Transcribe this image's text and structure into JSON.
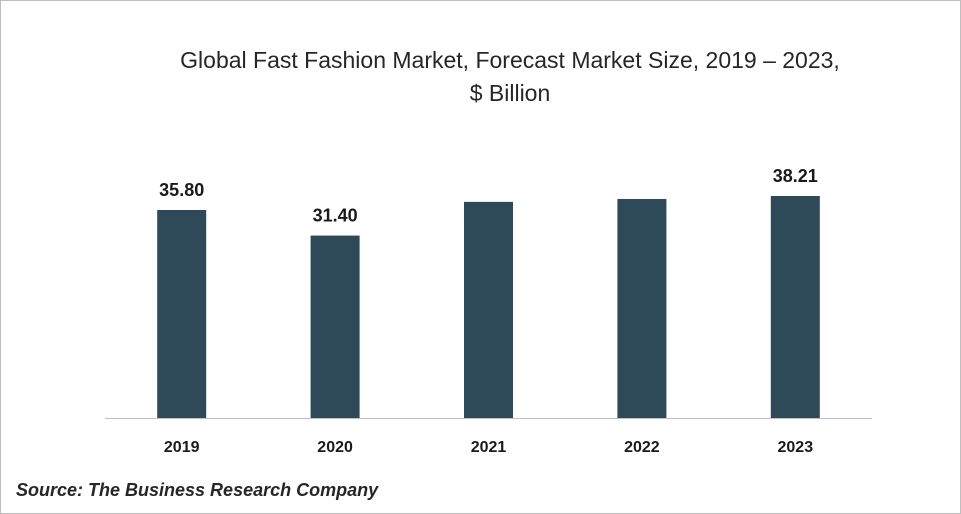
{
  "chart_data": {
    "type": "bar",
    "title": "Global Fast Fashion Market, Forecast Market Size, 2019 – 2023,",
    "subtitle": "$ Billion",
    "categories": [
      "2019",
      "2020",
      "2021",
      "2022",
      "2023"
    ],
    "values": [
      35.8,
      31.4,
      37.2,
      37.7,
      38.21
    ],
    "data_labels": [
      "35.80",
      "31.40",
      "",
      "",
      "38.21"
    ],
    "xlabel": "",
    "ylabel": "",
    "ylim": [
      0,
      40
    ],
    "grid": false,
    "legend": "none",
    "bar_color": "#2e4a58"
  },
  "source": "Source: The Business Research Company"
}
